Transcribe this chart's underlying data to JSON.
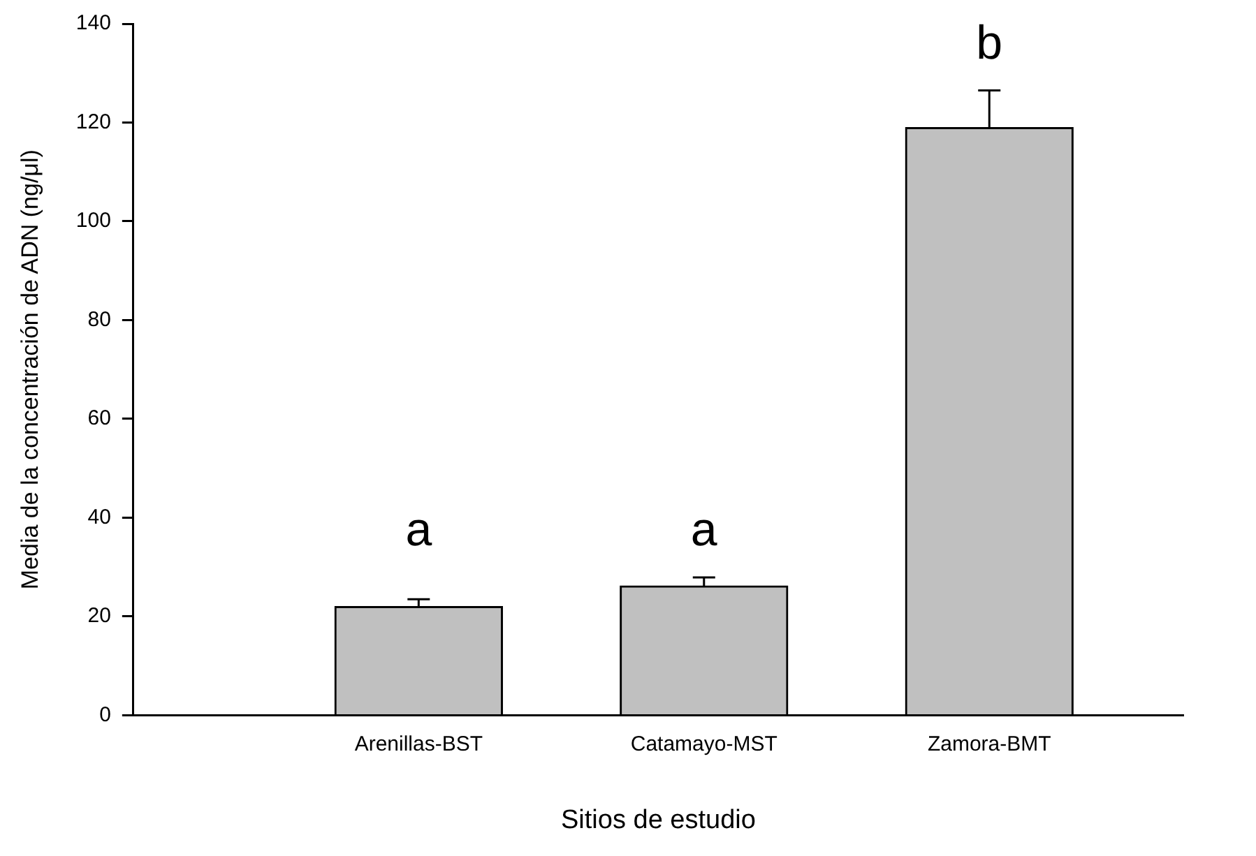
{
  "chart_data": {
    "type": "bar",
    "xlabel": "Sitios de estudio",
    "ylabel": "Media de la concentración de ADN (ng/μl)",
    "categories": [
      "Arenillas-BST",
      "Catamayo-MST",
      "Zamora-BMT"
    ],
    "values": [
      22,
      26.2,
      119
    ],
    "color": "#c0c0c0",
    "errors": [
      [
        22,
        23.5
      ],
      [
        26.2,
        27.9
      ],
      [
        119,
        126.5
      ]
    ],
    "ylim": [
      0,
      140
    ],
    "yticks": [
      0,
      20,
      40,
      60,
      80,
      100,
      120,
      140
    ],
    "grid": false,
    "legend": false,
    "annotations": [
      "a",
      "a",
      "b"
    ]
  }
}
